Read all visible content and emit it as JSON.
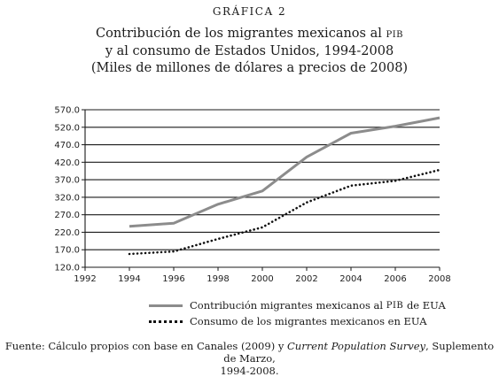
{
  "header": {
    "label": "GRÁFICA 2",
    "title_line1_pre": "Contribución de los migrantes mexicanos al",
    "title_line1_sc": "pib",
    "title_line2": "y al consumo de Estados Unidos, 1994-2008",
    "title_line3": "(Miles de millones de dólares a precios de 2008)"
  },
  "legend": {
    "item1_pre": "Contribución migrantes mexicanos al",
    "item1_sc": "pib",
    "item1_post": "de EUA",
    "item2": "Consumo de los migrantes mexicanos en EUA"
  },
  "source": {
    "pre": "Fuente: Cálculo propios con base en Canales (2009) y",
    "italic": "Current Population Survey",
    "post": ", Suplemento de Marzo,",
    "line2": "1994-2008."
  },
  "colors": {
    "series1": "#8c8c8c",
    "series2": "#111111",
    "grid": "#1a1a1a"
  },
  "chart_data": {
    "type": "line",
    "xlim": [
      1992,
      2008
    ],
    "ylim": [
      120,
      570
    ],
    "x_ticks": [
      "1992",
      "1994",
      "1996",
      "1998",
      "2000",
      "2002",
      "2004",
      "2006",
      "2008"
    ],
    "y_ticks": [
      "120.0",
      "170.0",
      "220.0",
      "270.0",
      "320.0",
      "370.0",
      "420.0",
      "470.0",
      "520.0",
      "570.0"
    ],
    "grid": "horizontal",
    "legend_position": "bottom",
    "series": [
      {
        "style": "solid",
        "x": [
          1994,
          1996,
          1998,
          2000,
          2002,
          2004,
          2006,
          2008
        ],
        "y": [
          237,
          246,
          300,
          338,
          435,
          503,
          523,
          547
        ]
      },
      {
        "style": "dotted",
        "x": [
          1994,
          1996,
          1998,
          2000,
          2002,
          2004,
          2006,
          2008
        ],
        "y": [
          158,
          165,
          201,
          234,
          305,
          353,
          367,
          398
        ]
      }
    ]
  }
}
